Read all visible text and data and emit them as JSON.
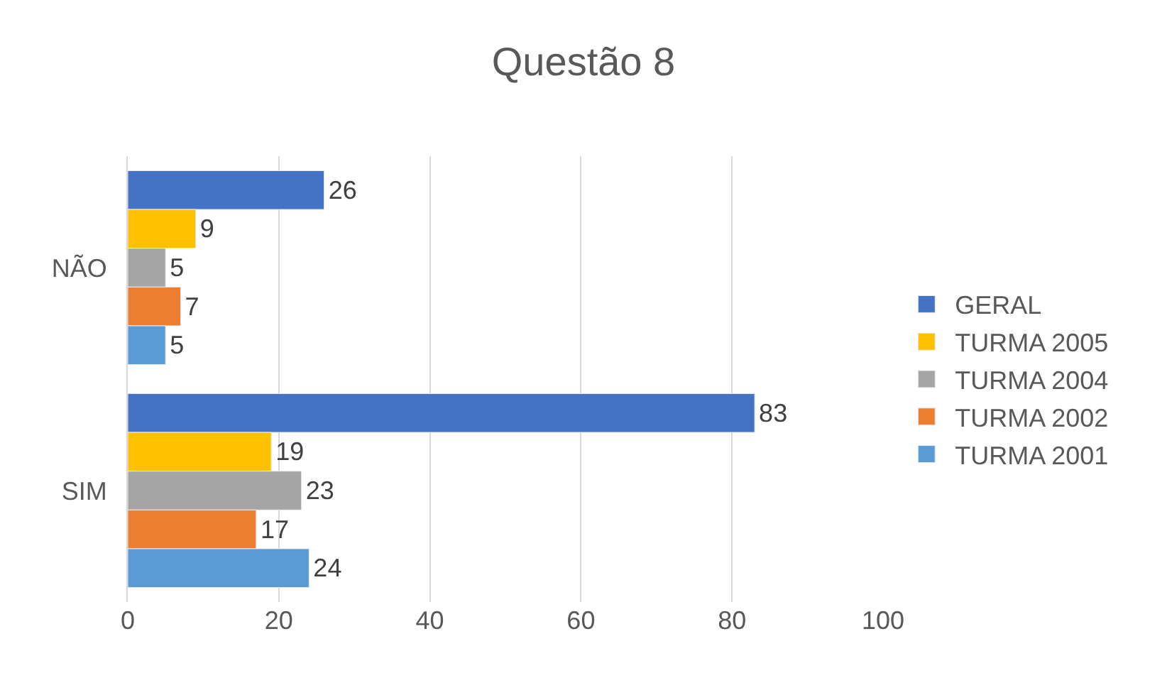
{
  "chart_data": {
    "type": "bar",
    "orientation": "horizontal",
    "title": "Questão 8",
    "categories": [
      "NÃO",
      "SIM"
    ],
    "series": [
      {
        "name": "GERAL",
        "color": "#4472c4",
        "values": [
          26,
          83
        ]
      },
      {
        "name": "TURMA 2005",
        "color": "#ffc000",
        "values": [
          9,
          19
        ]
      },
      {
        "name": "TURMA 2004",
        "color": "#a5a5a5",
        "values": [
          5,
          23
        ]
      },
      {
        "name": "TURMA 2002",
        "color": "#ed7d31",
        "values": [
          7,
          17
        ]
      },
      {
        "name": "TURMA 2001",
        "color": "#5b9bd5",
        "values": [
          5,
          24
        ]
      }
    ],
    "xlim": [
      0,
      100
    ],
    "xticks": [
      0,
      20,
      40,
      60,
      80,
      100
    ],
    "grid": "x",
    "legend": "right",
    "data_labels": true
  }
}
